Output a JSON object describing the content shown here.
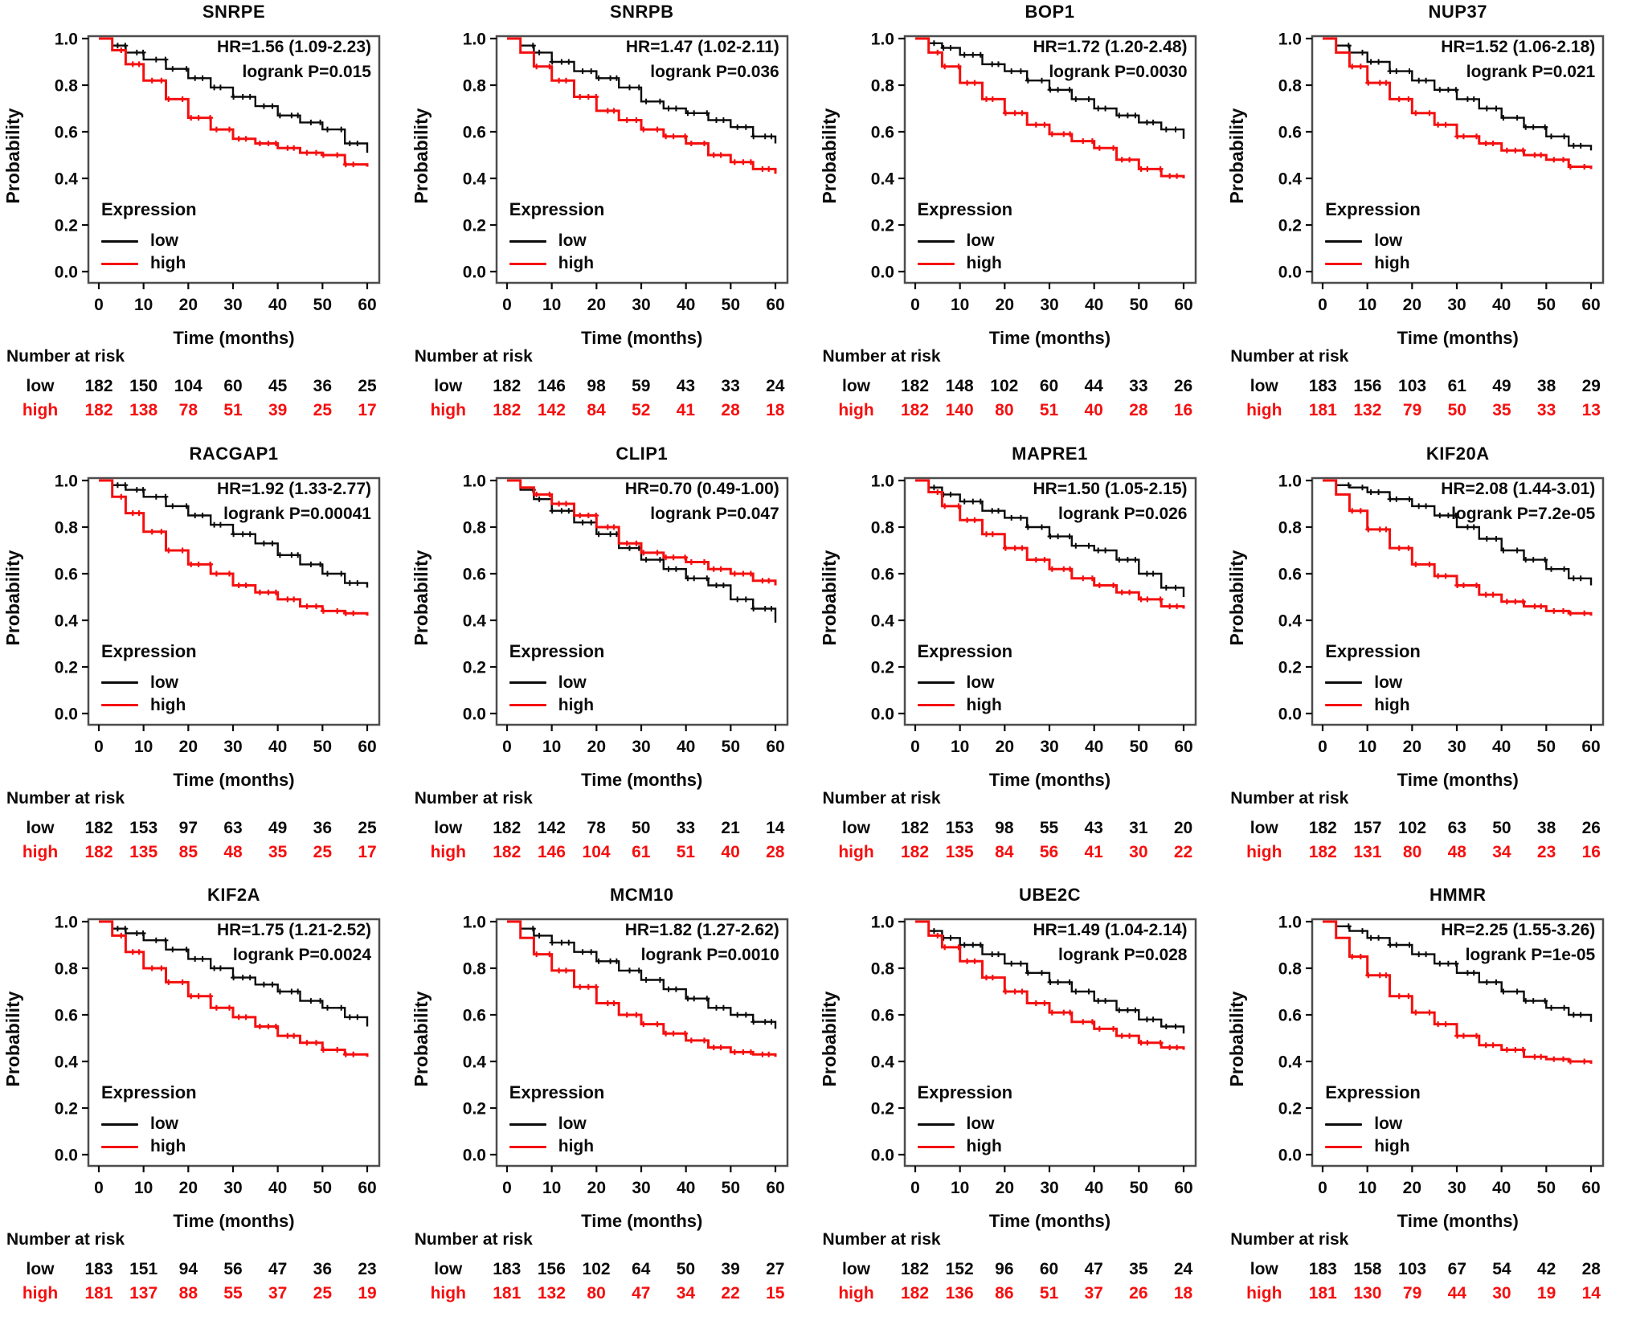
{
  "figure": {
    "panel_count": 12,
    "layout": "4x3 grid of Kaplan-Meier survival plots"
  },
  "chart_data": {
    "type": "line",
    "subtype": "kaplan-meier-step",
    "x": {
      "label": "Time (months)",
      "ticks": [
        "0",
        "10",
        "20",
        "30",
        "40",
        "50",
        "60"
      ],
      "values": [
        0,
        10,
        20,
        30,
        40,
        50,
        60
      ],
      "range": [
        0,
        60
      ]
    },
    "y": {
      "label": "Probability",
      "ticks": [
        "1.0",
        "0.8",
        "0.6",
        "0.4",
        "0.2",
        "0.0"
      ],
      "values": [
        1.0,
        0.8,
        0.6,
        0.4,
        0.2,
        0.0
      ],
      "range": [
        0,
        1
      ]
    },
    "legend": {
      "title": "Expression",
      "items": [
        {
          "label": "low",
          "color": "#0b0b0b"
        },
        {
          "label": "high",
          "color": "#f50f0f"
        }
      ]
    },
    "risk_header": "Number at risk",
    "box_border_color": "#4d4d4d",
    "sample_times": [
      0,
      3,
      6,
      10,
      15,
      20,
      25,
      30,
      35,
      40,
      45,
      50,
      55,
      60
    ],
    "panels": [
      {
        "title": "SNRPE",
        "hr": "HR=1.56 (1.09-2.23)",
        "logrank": "logrank P=0.015",
        "series": {
          "low": [
            1.0,
            0.97,
            0.94,
            0.91,
            0.87,
            0.83,
            0.79,
            0.75,
            0.71,
            0.67,
            0.64,
            0.61,
            0.55,
            0.51
          ],
          "high": [
            1.0,
            0.95,
            0.89,
            0.82,
            0.74,
            0.66,
            0.61,
            0.57,
            0.55,
            0.53,
            0.51,
            0.5,
            0.46,
            0.45
          ]
        },
        "risk": {
          "low": [
            182,
            150,
            104,
            60,
            45,
            36,
            25
          ],
          "high": [
            182,
            138,
            78,
            51,
            39,
            25,
            17
          ]
        }
      },
      {
        "title": "SNRPB",
        "hr": "HR=1.47 (1.02-2.11)",
        "logrank": "logrank P=0.036",
        "series": {
          "low": [
            1.0,
            0.97,
            0.94,
            0.9,
            0.86,
            0.83,
            0.79,
            0.73,
            0.7,
            0.68,
            0.65,
            0.62,
            0.58,
            0.55
          ],
          "high": [
            1.0,
            0.94,
            0.88,
            0.82,
            0.75,
            0.69,
            0.65,
            0.61,
            0.58,
            0.55,
            0.5,
            0.47,
            0.44,
            0.42
          ]
        },
        "risk": {
          "low": [
            182,
            146,
            98,
            59,
            43,
            33,
            24
          ],
          "high": [
            182,
            142,
            84,
            52,
            41,
            28,
            18
          ]
        }
      },
      {
        "title": "BOP1",
        "hr": "HR=1.72 (1.20-2.48)",
        "logrank": "logrank P=0.0030",
        "series": {
          "low": [
            1.0,
            0.98,
            0.96,
            0.93,
            0.89,
            0.86,
            0.82,
            0.78,
            0.74,
            0.7,
            0.67,
            0.64,
            0.61,
            0.57
          ],
          "high": [
            1.0,
            0.94,
            0.88,
            0.81,
            0.74,
            0.68,
            0.63,
            0.59,
            0.56,
            0.53,
            0.48,
            0.44,
            0.41,
            0.4
          ]
        },
        "risk": {
          "low": [
            182,
            148,
            102,
            60,
            44,
            33,
            26
          ],
          "high": [
            182,
            140,
            80,
            51,
            40,
            28,
            16
          ]
        }
      },
      {
        "title": "NUP37",
        "hr": "HR=1.52 (1.06-2.18)",
        "logrank": "logrank P=0.021",
        "series": {
          "low": [
            1.0,
            0.97,
            0.94,
            0.9,
            0.86,
            0.82,
            0.78,
            0.74,
            0.7,
            0.66,
            0.62,
            0.58,
            0.54,
            0.52
          ],
          "high": [
            1.0,
            0.94,
            0.88,
            0.81,
            0.74,
            0.68,
            0.63,
            0.58,
            0.55,
            0.52,
            0.5,
            0.48,
            0.45,
            0.44
          ]
        },
        "risk": {
          "low": [
            183,
            156,
            103,
            61,
            49,
            38,
            29
          ],
          "high": [
            181,
            132,
            79,
            50,
            35,
            33,
            13
          ]
        }
      },
      {
        "title": "RACGAP1",
        "hr": "HR=1.92 (1.33-2.77)",
        "logrank": "logrank P=0.00041",
        "series": {
          "low": [
            1.0,
            0.98,
            0.96,
            0.93,
            0.89,
            0.85,
            0.81,
            0.77,
            0.73,
            0.68,
            0.64,
            0.6,
            0.56,
            0.54
          ],
          "high": [
            1.0,
            0.93,
            0.86,
            0.78,
            0.7,
            0.64,
            0.6,
            0.55,
            0.52,
            0.49,
            0.46,
            0.44,
            0.43,
            0.42
          ]
        },
        "risk": {
          "low": [
            182,
            153,
            97,
            63,
            49,
            36,
            25
          ],
          "high": [
            182,
            135,
            85,
            48,
            35,
            25,
            17
          ]
        }
      },
      {
        "title": "CLIP1",
        "hr": "HR=0.70 (0.49-1.00)",
        "logrank": "logrank P=0.047",
        "series": {
          "low": [
            1.0,
            0.96,
            0.92,
            0.87,
            0.82,
            0.77,
            0.71,
            0.66,
            0.62,
            0.58,
            0.55,
            0.49,
            0.45,
            0.39
          ],
          "high": [
            1.0,
            0.97,
            0.94,
            0.9,
            0.85,
            0.8,
            0.73,
            0.69,
            0.67,
            0.65,
            0.62,
            0.6,
            0.57,
            0.55
          ]
        },
        "risk": {
          "low": [
            182,
            142,
            78,
            50,
            33,
            21,
            14
          ],
          "high": [
            182,
            146,
            104,
            61,
            51,
            40,
            28
          ]
        }
      },
      {
        "title": "MAPRE1",
        "hr": "HR=1.50 (1.05-2.15)",
        "logrank": "logrank P=0.026",
        "series": {
          "low": [
            1.0,
            0.97,
            0.94,
            0.91,
            0.87,
            0.84,
            0.8,
            0.76,
            0.72,
            0.7,
            0.66,
            0.6,
            0.54,
            0.5
          ],
          "high": [
            1.0,
            0.95,
            0.89,
            0.83,
            0.77,
            0.71,
            0.66,
            0.62,
            0.58,
            0.55,
            0.52,
            0.49,
            0.46,
            0.45
          ]
        },
        "risk": {
          "low": [
            182,
            153,
            98,
            55,
            43,
            31,
            20
          ],
          "high": [
            182,
            135,
            84,
            56,
            41,
            30,
            22
          ]
        }
      },
      {
        "title": "KIF20A",
        "hr": "HR=2.08 (1.44-3.01)",
        "logrank": "logrank P=7.2e-05",
        "series": {
          "low": [
            1.0,
            0.98,
            0.97,
            0.95,
            0.92,
            0.89,
            0.85,
            0.8,
            0.75,
            0.7,
            0.66,
            0.62,
            0.58,
            0.55
          ],
          "high": [
            1.0,
            0.94,
            0.87,
            0.79,
            0.71,
            0.64,
            0.59,
            0.55,
            0.51,
            0.48,
            0.46,
            0.44,
            0.43,
            0.42
          ]
        },
        "risk": {
          "low": [
            182,
            157,
            102,
            63,
            50,
            38,
            26
          ],
          "high": [
            182,
            131,
            80,
            48,
            34,
            23,
            16
          ]
        }
      },
      {
        "title": "KIF2A",
        "hr": "HR=1.75 (1.21-2.52)",
        "logrank": "logrank P=0.0024",
        "series": {
          "low": [
            1.0,
            0.97,
            0.95,
            0.92,
            0.88,
            0.84,
            0.8,
            0.76,
            0.73,
            0.7,
            0.66,
            0.63,
            0.59,
            0.55
          ],
          "high": [
            1.0,
            0.94,
            0.87,
            0.8,
            0.74,
            0.68,
            0.63,
            0.59,
            0.55,
            0.51,
            0.48,
            0.45,
            0.43,
            0.42
          ]
        },
        "risk": {
          "low": [
            183,
            151,
            94,
            56,
            47,
            36,
            23
          ],
          "high": [
            181,
            137,
            88,
            55,
            37,
            25,
            19
          ]
        }
      },
      {
        "title": "MCM10",
        "hr": "HR=1.82 (1.27-2.62)",
        "logrank": "logrank P=0.0010",
        "series": {
          "low": [
            1.0,
            0.97,
            0.94,
            0.91,
            0.87,
            0.83,
            0.79,
            0.75,
            0.71,
            0.67,
            0.63,
            0.6,
            0.57,
            0.54
          ],
          "high": [
            1.0,
            0.93,
            0.86,
            0.79,
            0.72,
            0.65,
            0.6,
            0.56,
            0.52,
            0.49,
            0.46,
            0.44,
            0.43,
            0.42
          ]
        },
        "risk": {
          "low": [
            183,
            156,
            102,
            64,
            50,
            39,
            27
          ],
          "high": [
            181,
            132,
            80,
            47,
            34,
            22,
            15
          ]
        }
      },
      {
        "title": "UBE2C",
        "hr": "HR=1.49 (1.04-2.14)",
        "logrank": "logrank P=0.028",
        "series": {
          "low": [
            1.0,
            0.96,
            0.93,
            0.9,
            0.86,
            0.82,
            0.78,
            0.74,
            0.7,
            0.66,
            0.62,
            0.58,
            0.55,
            0.52
          ],
          "high": [
            1.0,
            0.94,
            0.89,
            0.83,
            0.76,
            0.7,
            0.65,
            0.61,
            0.57,
            0.54,
            0.51,
            0.48,
            0.46,
            0.45
          ]
        },
        "risk": {
          "low": [
            182,
            152,
            96,
            60,
            47,
            35,
            24
          ],
          "high": [
            182,
            136,
            86,
            51,
            37,
            26,
            18
          ]
        }
      },
      {
        "title": "HMMR",
        "hr": "HR=2.25 (1.55-3.26)",
        "logrank": "logrank P=1e-05",
        "series": {
          "low": [
            1.0,
            0.98,
            0.96,
            0.93,
            0.9,
            0.86,
            0.82,
            0.78,
            0.74,
            0.7,
            0.66,
            0.63,
            0.6,
            0.57
          ],
          "high": [
            1.0,
            0.93,
            0.85,
            0.77,
            0.68,
            0.61,
            0.56,
            0.51,
            0.47,
            0.45,
            0.42,
            0.41,
            0.4,
            0.39
          ]
        },
        "risk": {
          "low": [
            183,
            158,
            103,
            67,
            54,
            42,
            28
          ],
          "high": [
            181,
            130,
            79,
            44,
            30,
            19,
            14
          ]
        }
      }
    ]
  }
}
